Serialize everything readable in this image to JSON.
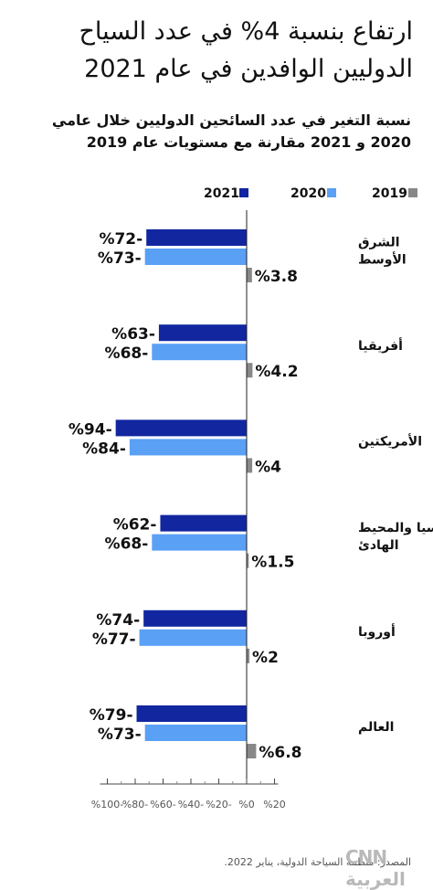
{
  "title": "ارتفاع بنسبة 4% في عدد السياح الدوليين الوافدين في عام 2021",
  "subtitle": "نسبة التغير في عدد السائحين الدوليين خلال عامي 2020 و 2021 مقارنة مع مستويات عام 2019",
  "source": "المصدر: منظمة السياحة الدولية، يناير 2022.",
  "logo_text": "CNN العربية",
  "colors": {
    "s2021": "#1226a0",
    "s2020": "#5aa0f5",
    "s2019": "#888888"
  },
  "chart_data": {
    "type": "bar",
    "orientation": "horizontal",
    "categories": [
      "الشرق الأوسط",
      "أفريقيا",
      "الأمريكتين",
      "آسيا والمحيط الهادئ",
      "أوروبا",
      "العالم"
    ],
    "series": [
      {
        "name": "2021",
        "values": [
          -72,
          -63,
          -94,
          -62,
          -74,
          -79
        ],
        "labels": [
          "%72-",
          "%63-",
          "%94-",
          "%62-",
          "%74-",
          "%79-"
        ]
      },
      {
        "name": "2020",
        "values": [
          -73,
          -68,
          -84,
          -68,
          -77,
          -73
        ],
        "labels": [
          "%73-",
          "%68-",
          "%84-",
          "%68-",
          "%77-",
          "%73-"
        ]
      },
      {
        "name": "2019",
        "values": [
          3.8,
          4.2,
          4,
          1.5,
          2,
          6.8
        ],
        "labels": [
          "%3.8",
          "%4.2",
          "%4",
          "%1.5",
          "%2",
          "%6.8"
        ]
      }
    ],
    "legend_order": [
      "2021",
      "2020",
      "2019"
    ],
    "legend_placement": "top",
    "xlim": [
      -100,
      20
    ],
    "xticks": [
      -100,
      -80,
      -60,
      -40,
      -20,
      0,
      20
    ],
    "xtick_labels": [
      "%100-",
      "%80-",
      "%60-",
      "%40-",
      "%20-",
      "%0",
      "%20"
    ],
    "grid": false
  }
}
